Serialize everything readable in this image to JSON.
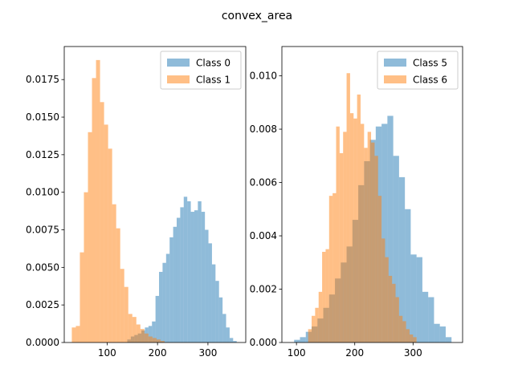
{
  "title": "convex_area",
  "colors": {
    "series_a": "#1f77b4",
    "series_b": "#ff7f0e",
    "alpha": 0.5
  },
  "chart_data": [
    {
      "type": "bar",
      "histogram": true,
      "legend_position": "top-right",
      "xlim": [
        15,
        375
      ],
      "ylim": [
        0,
        0.0197
      ],
      "xticks": [
        100,
        200,
        300
      ],
      "yticks": [
        0.0,
        0.0025,
        0.005,
        0.0075,
        0.01,
        0.0125,
        0.015,
        0.0175
      ],
      "ytick_labels": [
        "0.0000",
        "0.0025",
        "0.0050",
        "0.0075",
        "0.0100",
        "0.0125",
        "0.0150",
        "0.0175"
      ],
      "series": [
        {
          "name": "Class 0",
          "color_key": "series_a",
          "bins": [
            [
              140,
              147,
              0.0002
            ],
            [
              147,
              154,
              0.0004
            ],
            [
              154,
              161,
              0.0005
            ],
            [
              161,
              168,
              0.0006
            ],
            [
              168,
              175,
              0.0008
            ],
            [
              175,
              182,
              0.001
            ],
            [
              182,
              189,
              0.0011
            ],
            [
              189,
              196,
              0.0014
            ],
            [
              196,
              203,
              0.0031
            ],
            [
              203,
              210,
              0.0047
            ],
            [
              210,
              217,
              0.0053
            ],
            [
              217,
              224,
              0.0059
            ],
            [
              224,
              231,
              0.007
            ],
            [
              231,
              238,
              0.0077
            ],
            [
              238,
              245,
              0.0083
            ],
            [
              245,
              252,
              0.009
            ],
            [
              252,
              259,
              0.0097
            ],
            [
              259,
              266,
              0.0094
            ],
            [
              266,
              273,
              0.0087
            ],
            [
              273,
              280,
              0.0088
            ],
            [
              280,
              287,
              0.0094
            ],
            [
              287,
              294,
              0.0087
            ],
            [
              294,
              301,
              0.0075
            ],
            [
              301,
              308,
              0.0066
            ],
            [
              308,
              315,
              0.0052
            ],
            [
              315,
              322,
              0.0041
            ],
            [
              322,
              329,
              0.003
            ],
            [
              329,
              336,
              0.0019
            ],
            [
              336,
              343,
              0.001
            ],
            [
              343,
              350,
              0.0003
            ],
            [
              350,
              357,
              0.0001
            ]
          ]
        },
        {
          "name": "Class 1",
          "color_key": "series_b",
          "bins": [
            [
              30,
              38,
              0.001
            ],
            [
              38,
              46,
              0.0011
            ],
            [
              46,
              54,
              0.006
            ],
            [
              54,
              62,
              0.01
            ],
            [
              62,
              70,
              0.014
            ],
            [
              70,
              78,
              0.0176
            ],
            [
              78,
              86,
              0.0188
            ],
            [
              86,
              94,
              0.016
            ],
            [
              94,
              102,
              0.0145
            ],
            [
              102,
              110,
              0.0129
            ],
            [
              110,
              118,
              0.0092
            ],
            [
              118,
              126,
              0.0076
            ],
            [
              126,
              134,
              0.0049
            ],
            [
              134,
              142,
              0.0037
            ],
            [
              142,
              150,
              0.0019
            ],
            [
              150,
              158,
              0.0017
            ],
            [
              158,
              166,
              0.0012
            ],
            [
              166,
              174,
              0.0009
            ],
            [
              174,
              182,
              0.0006
            ],
            [
              182,
              190,
              0.0004
            ],
            [
              190,
              198,
              0.0003
            ],
            [
              198,
              206,
              0.0002
            ],
            [
              206,
              214,
              0.0001
            ]
          ]
        }
      ]
    },
    {
      "type": "bar",
      "histogram": true,
      "legend_position": "top-right",
      "xlim": [
        75,
        385
      ],
      "ylim": [
        0,
        0.0111
      ],
      "xticks": [
        100,
        200,
        300
      ],
      "yticks": [
        0.0,
        0.002,
        0.004,
        0.006,
        0.008,
        0.01
      ],
      "ytick_labels": [
        "0.000",
        "0.002",
        "0.004",
        "0.006",
        "0.008",
        "0.010"
      ],
      "series": [
        {
          "name": "Class 5",
          "color_key": "series_a",
          "bins": [
            [
              96,
              106,
              0.0001
            ],
            [
              106,
              116,
              0.0002
            ],
            [
              116,
              126,
              0.0004
            ],
            [
              126,
              136,
              0.0006
            ],
            [
              136,
              146,
              0.0009
            ],
            [
              146,
              156,
              0.0013
            ],
            [
              156,
              166,
              0.0018
            ],
            [
              166,
              176,
              0.0024
            ],
            [
              176,
              186,
              0.003
            ],
            [
              186,
              196,
              0.0036
            ],
            [
              196,
              206,
              0.0046
            ],
            [
              206,
              216,
              0.0059
            ],
            [
              216,
              226,
              0.0068
            ],
            [
              226,
              236,
              0.0076
            ],
            [
              236,
              246,
              0.0081
            ],
            [
              246,
              256,
              0.0082
            ],
            [
              256,
              266,
              0.0085
            ],
            [
              266,
              276,
              0.007
            ],
            [
              276,
              286,
              0.0062
            ],
            [
              286,
              296,
              0.005
            ],
            [
              296,
              306,
              0.0033
            ],
            [
              306,
              316,
              0.0032
            ],
            [
              316,
              326,
              0.0019
            ],
            [
              326,
              336,
              0.0017
            ],
            [
              336,
              346,
              0.0007
            ],
            [
              346,
              356,
              0.0006
            ],
            [
              356,
              366,
              0.0002
            ]
          ]
        },
        {
          "name": "Class 6",
          "color_key": "series_b",
          "bins": [
            [
              120,
              126,
              0.0005
            ],
            [
              126,
              132,
              0.001
            ],
            [
              132,
              138,
              0.0013
            ],
            [
              138,
              144,
              0.0019
            ],
            [
              144,
              150,
              0.0034
            ],
            [
              150,
              156,
              0.0035
            ],
            [
              156,
              162,
              0.0055
            ],
            [
              162,
              168,
              0.0056
            ],
            [
              168,
              174,
              0.0081
            ],
            [
              174,
              180,
              0.0071
            ],
            [
              180,
              186,
              0.0079
            ],
            [
              186,
              192,
              0.0101
            ],
            [
              192,
              198,
              0.0086
            ],
            [
              198,
              204,
              0.0084
            ],
            [
              204,
              210,
              0.0093
            ],
            [
              210,
              216,
              0.0082
            ],
            [
              216,
              222,
              0.0073
            ],
            [
              222,
              228,
              0.0079
            ],
            [
              228,
              234,
              0.0075
            ],
            [
              234,
              240,
              0.007
            ],
            [
              240,
              246,
              0.0055
            ],
            [
              246,
              252,
              0.0039
            ],
            [
              252,
              258,
              0.0032
            ],
            [
              258,
              264,
              0.0025
            ],
            [
              264,
              270,
              0.0022
            ],
            [
              270,
              276,
              0.0017
            ],
            [
              276,
              282,
              0.001
            ],
            [
              282,
              288,
              0.0008
            ],
            [
              288,
              294,
              0.0005
            ],
            [
              294,
              300,
              0.0003
            ],
            [
              300,
              306,
              0.0002
            ]
          ]
        }
      ]
    }
  ]
}
